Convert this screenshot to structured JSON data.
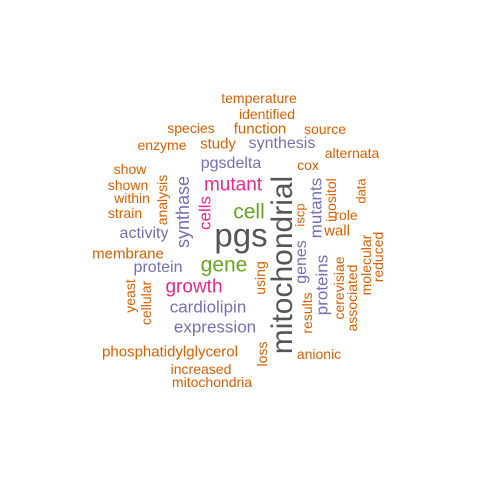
{
  "colors": {
    "orange": "#D95F02",
    "purple": "#7570B3",
    "magenta": "#E7298A",
    "green": "#66A61E",
    "gray": "#555555"
  },
  "words": [
    {
      "text": "temperature",
      "color": "orange"
    },
    {
      "text": "identified",
      "color": "orange"
    },
    {
      "text": "species",
      "color": "orange"
    },
    {
      "text": "function",
      "color": "orange"
    },
    {
      "text": "source",
      "color": "orange"
    },
    {
      "text": "enzyme",
      "color": "orange"
    },
    {
      "text": "study",
      "color": "orange"
    },
    {
      "text": "synthesis",
      "color": "purple"
    },
    {
      "text": "alternata",
      "color": "orange"
    },
    {
      "text": "show",
      "color": "orange"
    },
    {
      "text": "pgsdelta",
      "color": "purple"
    },
    {
      "text": "cox",
      "color": "orange"
    },
    {
      "text": "shown",
      "color": "orange"
    },
    {
      "text": "mutant",
      "color": "magenta"
    },
    {
      "text": "within",
      "color": "orange"
    },
    {
      "text": "strain",
      "color": "orange"
    },
    {
      "text": "cell",
      "color": "green"
    },
    {
      "text": "role",
      "color": "orange"
    },
    {
      "text": "wall",
      "color": "orange"
    },
    {
      "text": "activity",
      "color": "purple"
    },
    {
      "text": "pgs",
      "color": "gray"
    },
    {
      "text": "membrane",
      "color": "orange"
    },
    {
      "text": "protein",
      "color": "purple"
    },
    {
      "text": "gene",
      "color": "green"
    },
    {
      "text": "growth",
      "color": "magenta"
    },
    {
      "text": "cardiolipin",
      "color": "purple"
    },
    {
      "text": "expression",
      "color": "purple"
    },
    {
      "text": "phosphatidylglycerol",
      "color": "orange"
    },
    {
      "text": "anionic",
      "color": "orange"
    },
    {
      "text": "increased",
      "color": "orange"
    },
    {
      "text": "mitochondria",
      "color": "orange"
    },
    {
      "text": "analysis",
      "color": "orange"
    },
    {
      "text": "synthase",
      "color": "purple"
    },
    {
      "text": "cells",
      "color": "magenta"
    },
    {
      "text": "mitochondrial",
      "color": "gray"
    },
    {
      "text": "mutants",
      "color": "purple"
    },
    {
      "text": "inositol",
      "color": "orange"
    },
    {
      "text": "data",
      "color": "orange"
    },
    {
      "text": "iscp",
      "color": "orange"
    },
    {
      "text": "genes",
      "color": "purple"
    },
    {
      "text": "proteins",
      "color": "purple"
    },
    {
      "text": "results",
      "color": "orange"
    },
    {
      "text": "cerevisiae",
      "color": "orange"
    },
    {
      "text": "associated",
      "color": "orange"
    },
    {
      "text": "molecular",
      "color": "orange"
    },
    {
      "text": "reduced",
      "color": "orange"
    },
    {
      "text": "using",
      "color": "orange"
    },
    {
      "text": "loss",
      "color": "orange"
    },
    {
      "text": "yeast",
      "color": "orange"
    },
    {
      "text": "cellular",
      "color": "orange"
    }
  ]
}
